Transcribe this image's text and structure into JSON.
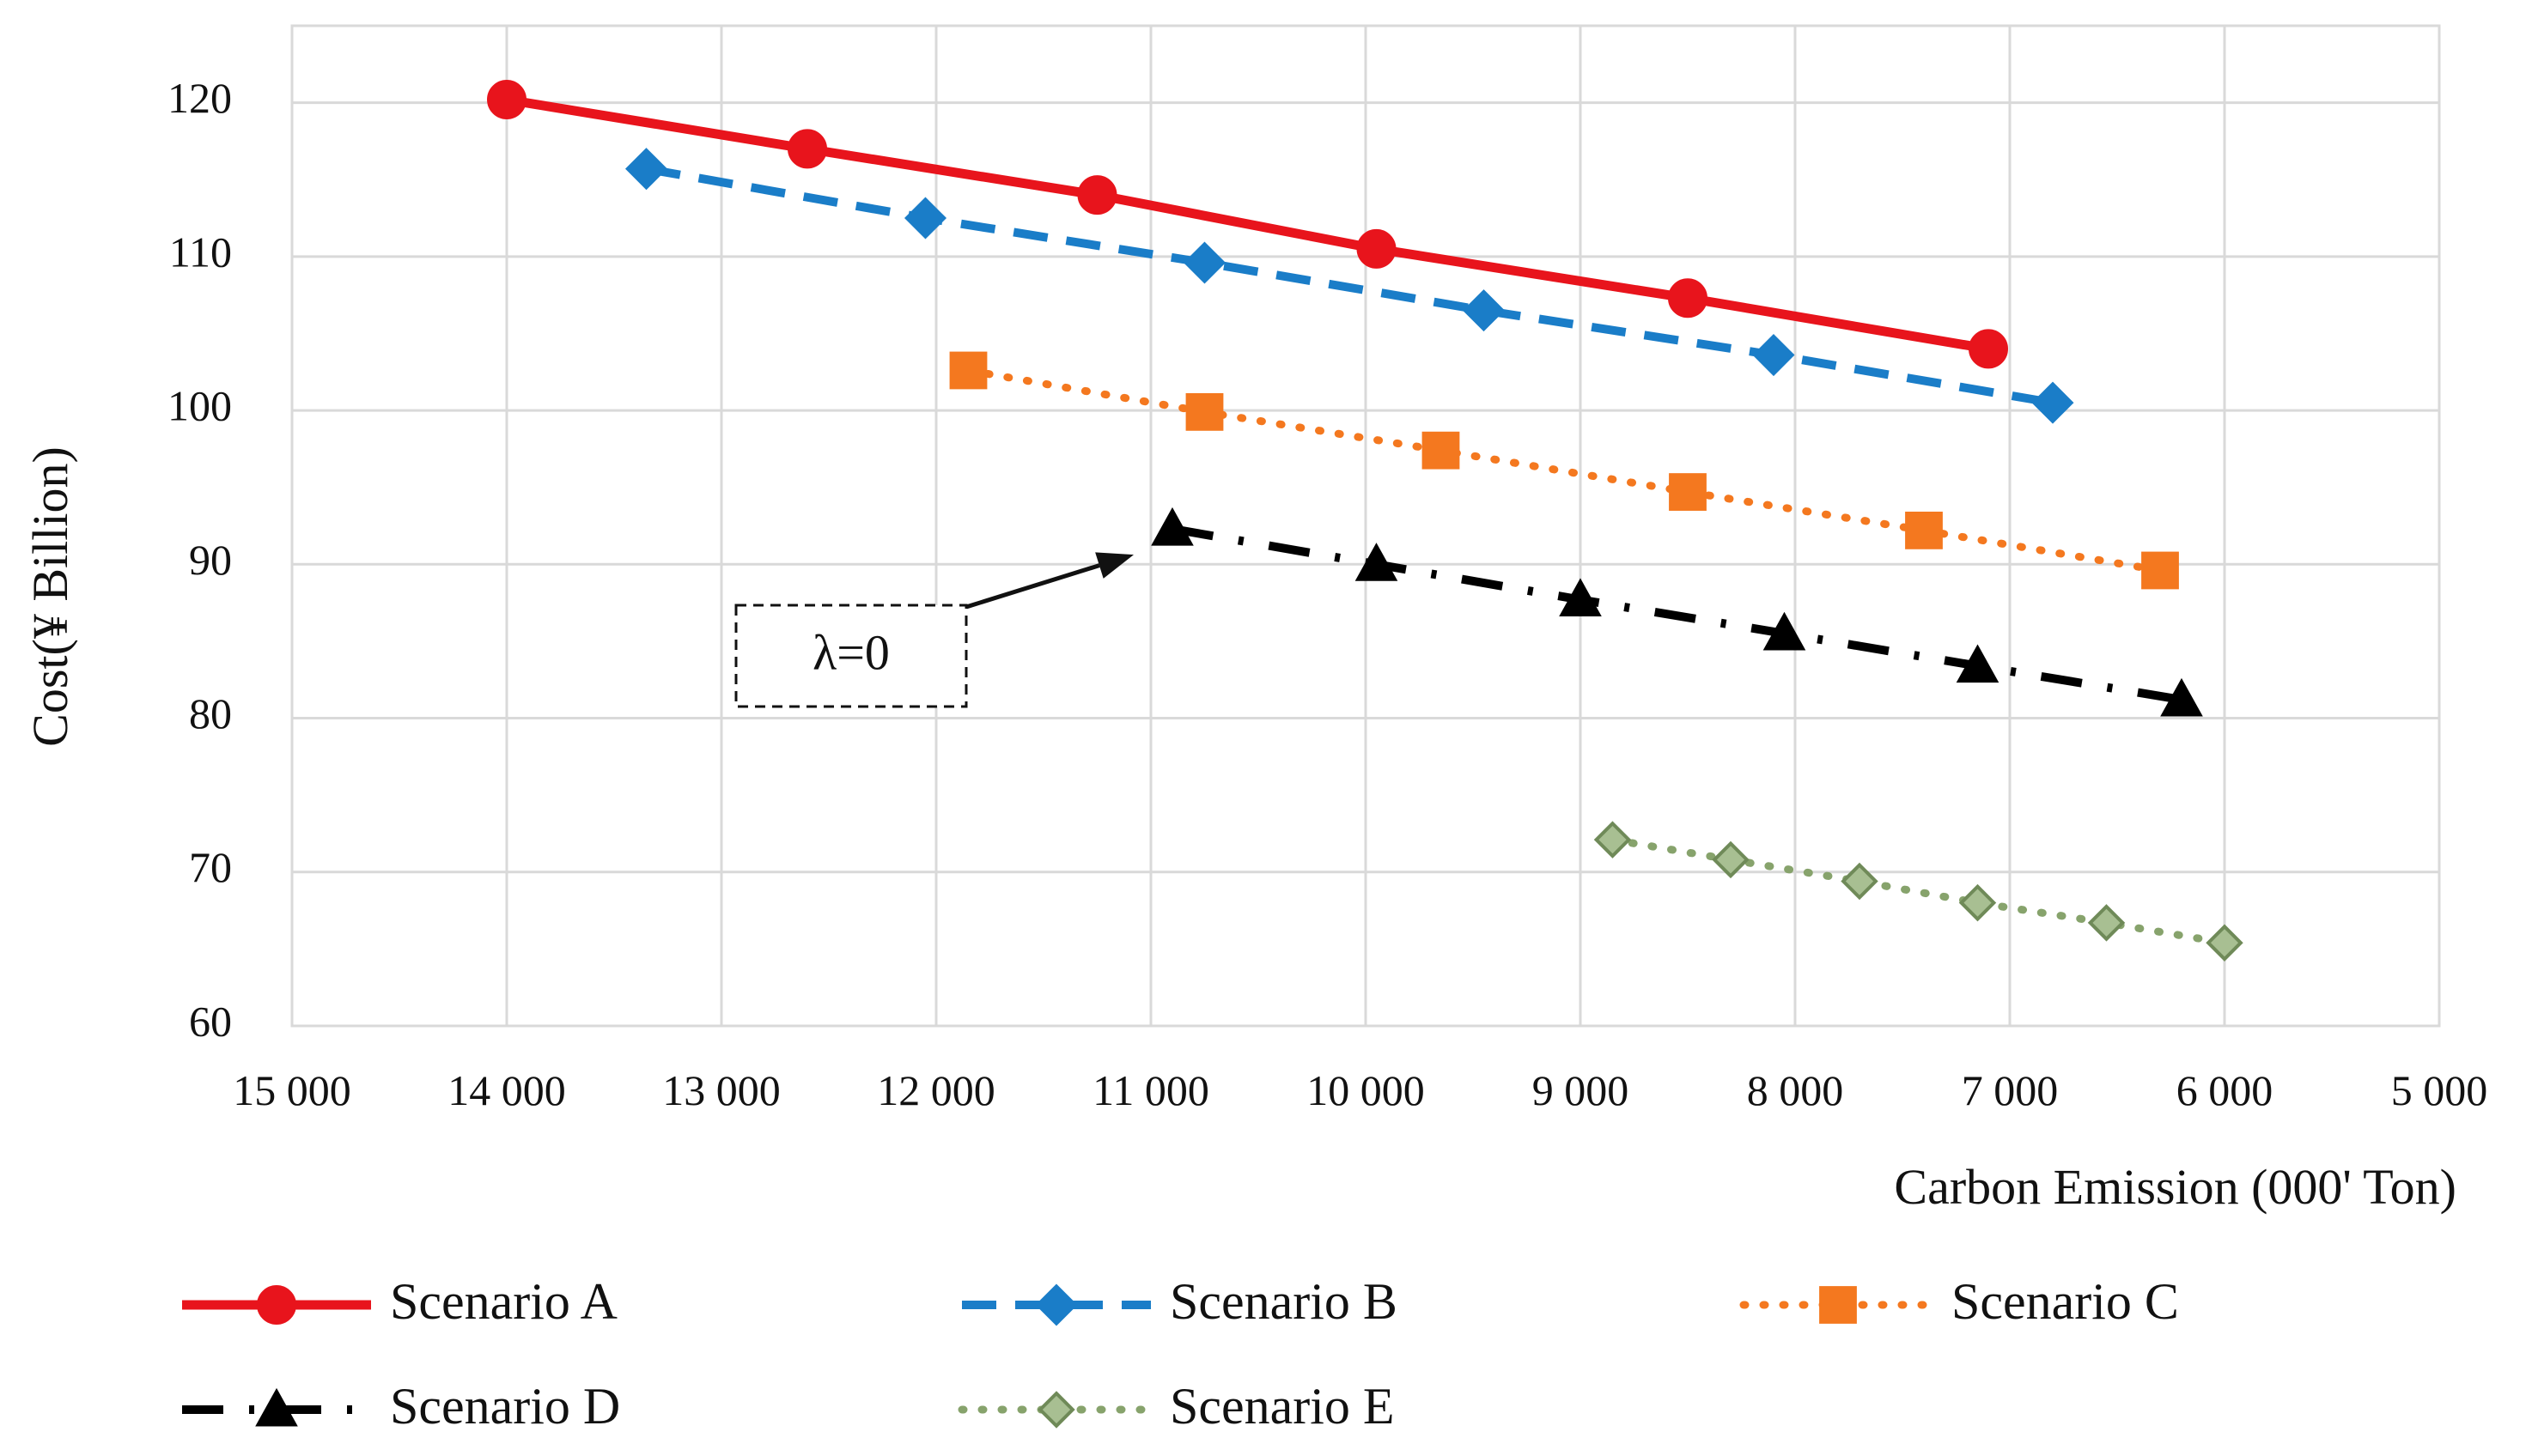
{
  "chart_data": {
    "type": "line",
    "title": "",
    "xlabel": "Carbon Emission  (000' Ton)",
    "ylabel": "Cost(¥ Billion)",
    "xlim": [
      15000,
      5000
    ],
    "ylim": [
      60,
      125
    ],
    "x_reversed": true,
    "grid": true,
    "x_ticks": [
      15000,
      14000,
      13000,
      12000,
      11000,
      10000,
      9000,
      8000,
      7000,
      6000,
      5000
    ],
    "x_tick_labels": [
      "15 000",
      "14 000",
      "13 000",
      "12 000",
      "11 000",
      "10 000",
      "9 000",
      "8 000",
      "7 000",
      "6 000",
      "5 000"
    ],
    "y_ticks": [
      60,
      70,
      80,
      90,
      100,
      110,
      120
    ],
    "y_tick_labels": [
      "60",
      "70",
      "80",
      "90",
      "100",
      "110",
      "120"
    ],
    "legend_position": "bottom",
    "series": [
      {
        "name": "Scenario A",
        "color": "#e8141c",
        "line_style": "solid",
        "marker": "circle",
        "x": [
          14000,
          12600,
          11250,
          9950,
          8500,
          7100
        ],
        "y": [
          120.2,
          117.0,
          114.0,
          110.5,
          107.3,
          104.0
        ]
      },
      {
        "name": "Scenario B",
        "color": "#1a7dc8",
        "line_style": "dashed",
        "marker": "diamond",
        "x": [
          13350,
          12050,
          10750,
          9450,
          8100,
          6800
        ],
        "y": [
          115.7,
          112.5,
          109.6,
          106.5,
          103.6,
          100.5
        ]
      },
      {
        "name": "Scenario C",
        "color": "#f4781f",
        "line_style": "dotted",
        "marker": "square",
        "x": [
          11850,
          10750,
          9650,
          8500,
          7400,
          6300
        ],
        "y": [
          102.6,
          99.9,
          97.4,
          94.7,
          92.2,
          89.6
        ]
      },
      {
        "name": "Scenario D",
        "color": "#000000",
        "line_style": "dash-dot",
        "marker": "triangle",
        "x": [
          10900,
          9950,
          9000,
          8050,
          7150,
          6200
        ],
        "y": [
          92.3,
          90.0,
          87.7,
          85.5,
          83.4,
          81.2
        ]
      },
      {
        "name": "Scenario E",
        "color": "#87a36c",
        "line_style": "dotted",
        "marker": "diamond",
        "x": [
          8850,
          8300,
          7700,
          7150,
          6550,
          6000
        ],
        "y": [
          72.1,
          70.8,
          69.4,
          68.0,
          66.7,
          65.4
        ]
      }
    ],
    "annotations": [
      {
        "text": "λ=0",
        "points_to_series": "Scenario D",
        "points_to_x": 10900,
        "points_to_y": 92.3
      }
    ]
  }
}
